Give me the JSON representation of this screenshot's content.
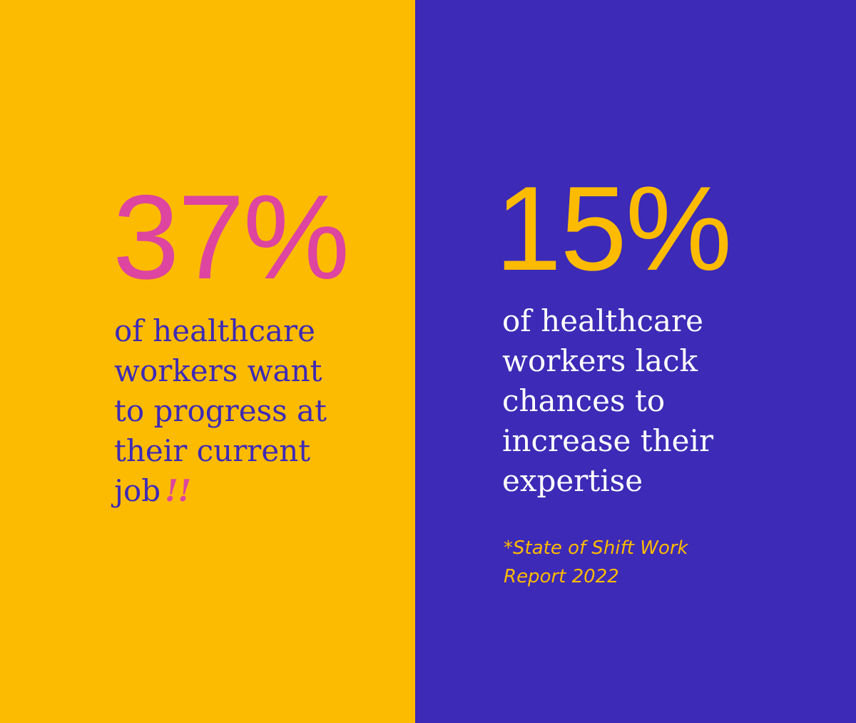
{
  "left": {
    "stat": "37%",
    "lines": [
      "of healthcare",
      "workers want",
      "to progress at",
      "their current",
      "job"
    ],
    "emphasis": "!!"
  },
  "right": {
    "stat": "15%",
    "lines": [
      "of healthcare",
      "workers lack",
      "chances to",
      "increase their",
      "expertise"
    ],
    "footnote": [
      "*State of Shift Work",
      "Report 2022"
    ]
  }
}
